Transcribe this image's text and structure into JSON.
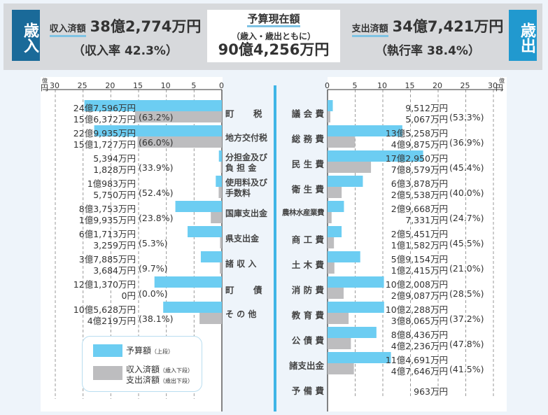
{
  "header": {
    "revenue_tag": "歳入",
    "expenditure_tag": "歳出",
    "revenue_label": "収入済額",
    "revenue_amount": "38億2,774万円",
    "revenue_rate": "（収入率  42.3%）",
    "budget_title": "予算現在額",
    "budget_sub": "（歳入・歳出ともに）",
    "budget_amount": "90億4,256万円",
    "expenditure_label": "支出済額",
    "expenditure_amount": "34億7,421万円",
    "expenditure_rate": "（執行率  38.4%）"
  },
  "colors": {
    "budget": "#6ccdf2",
    "actual": "#bdbdbf",
    "tag_in": "#1a6a99",
    "tag_out": "#2199cf"
  },
  "legend": {
    "budget": "予算額",
    "budget_note": "（上段）",
    "actual_in": "収入済額",
    "actual_in_note": "（歳入下段）",
    "actual_out": "支出済額",
    "actual_out_note": "（歳出下段）"
  },
  "chart_data": [
    {
      "type": "bar",
      "title": "歳入",
      "orientation": "horizontal-reversed",
      "unit_label": [
        "億",
        "円"
      ],
      "xlim": [
        0,
        30
      ],
      "ticks": [
        "30",
        "25",
        "20",
        "15",
        "10",
        "5",
        "0"
      ],
      "categories": [
        "町　　税",
        "地方交付税",
        "分担金及び負担金",
        "使用料及び手数料",
        "国庫支出金",
        "県支出金",
        "諸 収 入",
        "町　　債",
        "そ の 他"
      ],
      "category_lines": [
        [
          "町",
          "税"
        ],
        [
          "地方交付税"
        ],
        [
          "分担金及び",
          "負 担 金"
        ],
        [
          "使用料及び",
          "手数料"
        ],
        [
          "国庫支出金"
        ],
        [
          "県支出金"
        ],
        [
          "諸 収 入"
        ],
        [
          "町",
          "債"
        ],
        [
          "そ の 他"
        ]
      ],
      "series": [
        {
          "name": "予算額",
          "values": [
            24.7596,
            22.9935,
            0.5394,
            1.0983,
            8.3753,
            6.1713,
            3.7885,
            12.137,
            10.5628
          ],
          "labels": [
            "24億7,596万円",
            "22億9,935万円",
            "5,394万円",
            "1億983万円",
            "8億3,753万円",
            "6億1,713万円",
            "3億7,885万円",
            "12億1,370万円",
            "10億5,628万円"
          ]
        },
        {
          "name": "収入済額",
          "values": [
            15.6372,
            15.1727,
            0.1828,
            0.575,
            1.9935,
            0.3259,
            0.3684,
            0,
            4.0219
          ],
          "labels": [
            "15億6,372万円",
            "15億1,727万円",
            "1,828万円",
            "5,750万円",
            "1億9,935万円",
            "3,259万円",
            "3,684万円",
            "0円",
            "4億219万円"
          ],
          "rates": [
            "(63.2%)",
            "(66.0%)",
            "(33.9%)",
            "(52.4%)",
            "(23.8%)",
            "(5.3%)",
            "(9.7%)",
            "(0.0%)",
            "(38.1%)"
          ]
        }
      ]
    },
    {
      "type": "bar",
      "title": "歳出",
      "orientation": "horizontal",
      "unit_label": [
        "億",
        "円"
      ],
      "xlim": [
        0,
        30
      ],
      "ticks": [
        "0",
        "5",
        "10",
        "15",
        "20",
        "25",
        "30"
      ],
      "categories": [
        "議 会 費",
        "総 務 費",
        "民 生 費",
        "衛 生 費",
        "農林水産業費",
        "商 工 費",
        "土 木 費",
        "消 防 費",
        "教 育 費",
        "公 債 費",
        "諸支出金",
        "予 備 費"
      ],
      "series": [
        {
          "name": "予算額",
          "values": [
            0.9512,
            13.5258,
            17.295,
            6.3878,
            2.9668,
            2.5451,
            5.9154,
            10.2008,
            10.2288,
            8.8436,
            11.4691,
            0.0963
          ],
          "labels": [
            "9,512万円",
            "13億5,258万円",
            "17億2,950万円",
            "6億3,878万円",
            "2億9,668万円",
            "2億5,451万円",
            "5億9,154万円",
            "10億2,008万円",
            "10億2,288万円",
            "8億8,436万円",
            "11億4,691万円",
            "963万円"
          ]
        },
        {
          "name": "支出済額",
          "values": [
            0.5067,
            4.9875,
            7.8579,
            2.5538,
            0.7331,
            1.1582,
            1.2415,
            2.9087,
            3.8065,
            4.2236,
            4.7646,
            null
          ],
          "labels": [
            "5,067万円",
            "4億9,875万円",
            "7億8,579万円",
            "2億5,538万円",
            "7,331万円",
            "1億1,582万円",
            "1億2,415万円",
            "2億9,087万円",
            "3億8,065万円",
            "4億2,236万円",
            "4億7,646万円",
            null
          ],
          "rates": [
            "(53.3%)",
            "(36.9%)",
            "(45.4%)",
            "(40.0%)",
            "(24.7%)",
            "(45.5%)",
            "(21.0%)",
            "(28.5%)",
            "(37.2%)",
            "(47.8%)",
            "(41.5%)",
            null
          ]
        }
      ]
    }
  ]
}
